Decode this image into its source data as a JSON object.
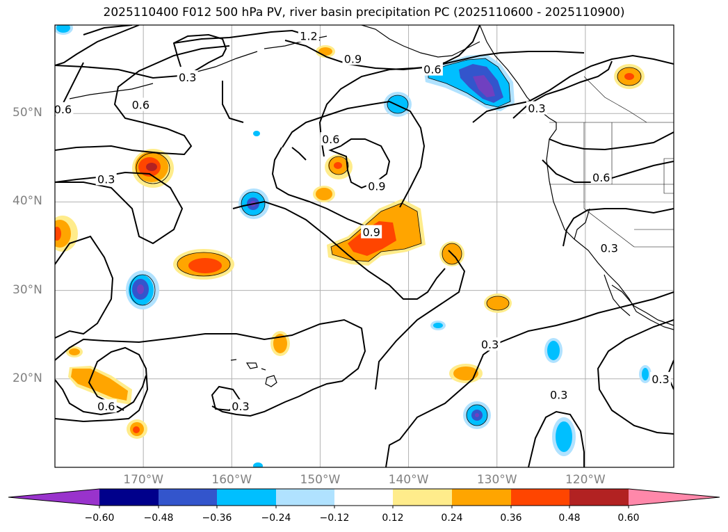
{
  "title": "2025110400 F012 500 hPa PV, river basin precipitation PC (2025110600 - 2025110900)",
  "map": {
    "lon_range": [
      -180,
      -110
    ],
    "lat_range": [
      10,
      60
    ],
    "lat_ticks": [
      {
        "value": 20,
        "label": "20°N"
      },
      {
        "value": 30,
        "label": "30°N"
      },
      {
        "value": 40,
        "label": "40°N"
      },
      {
        "value": 50,
        "label": "50°N"
      }
    ],
    "lon_ticks": [
      {
        "value": -170,
        "label": "170°W"
      },
      {
        "value": -160,
        "label": "160°W"
      },
      {
        "value": -150,
        "label": "150°W"
      },
      {
        "value": -140,
        "label": "140°W"
      },
      {
        "value": -130,
        "label": "130°W"
      },
      {
        "value": -120,
        "label": "120°W"
      }
    ],
    "contour_labels": [
      {
        "text": "0.3",
        "lon": -174.2,
        "lat": 42.6
      },
      {
        "text": "0.3",
        "lon": -159.0,
        "lat": 16.9
      },
      {
        "text": "0.3",
        "lon": -130.8,
        "lat": 23.9
      },
      {
        "text": "0.3",
        "lon": -123.0,
        "lat": 18.2
      },
      {
        "text": "0.3",
        "lon": -117.3,
        "lat": 34.8
      },
      {
        "text": "0.3",
        "lon": -111.5,
        "lat": 20.0
      },
      {
        "text": "0.3",
        "lon": -125.5,
        "lat": 50.6
      },
      {
        "text": "0.3",
        "lon": -165.0,
        "lat": 54.1
      },
      {
        "text": "0.6",
        "lon": -174.2,
        "lat": 16.9
      },
      {
        "text": "0.6",
        "lon": -148.8,
        "lat": 47.1
      },
      {
        "text": "0.6",
        "lon": -118.2,
        "lat": 42.8
      },
      {
        "text": "0.6",
        "lon": -170.3,
        "lat": 51.0
      },
      {
        "text": "0.6",
        "lon": -179.1,
        "lat": 50.5
      },
      {
        "text": "0.6",
        "lon": -137.3,
        "lat": 55.0
      },
      {
        "text": "0.9",
        "lon": -146.3,
        "lat": 56.2
      },
      {
        "text": "0.9",
        "lon": -143.6,
        "lat": 41.8
      },
      {
        "text": "0.9",
        "lon": -144.2,
        "lat": 36.6
      },
      {
        "text": "1.2",
        "lon": -151.3,
        "lat": 58.8
      }
    ],
    "colors": {
      "contour": "#000000",
      "grid": "#b0b0b0",
      "tick_label": "#808080"
    }
  },
  "colorbar": {
    "colors": [
      "#9933cc",
      "#00008b",
      "#3355cc",
      "#00bfff",
      "#b0e2ff",
      "#ffffff",
      "#ffec8b",
      "#ffa500",
      "#ff4500",
      "#b22222",
      "#ff88aa"
    ],
    "tick_labels": [
      "−0.60",
      "−0.48",
      "−0.36",
      "−0.24",
      "−0.12",
      "0.12",
      "0.24",
      "0.36",
      "0.48",
      "0.60"
    ]
  }
}
